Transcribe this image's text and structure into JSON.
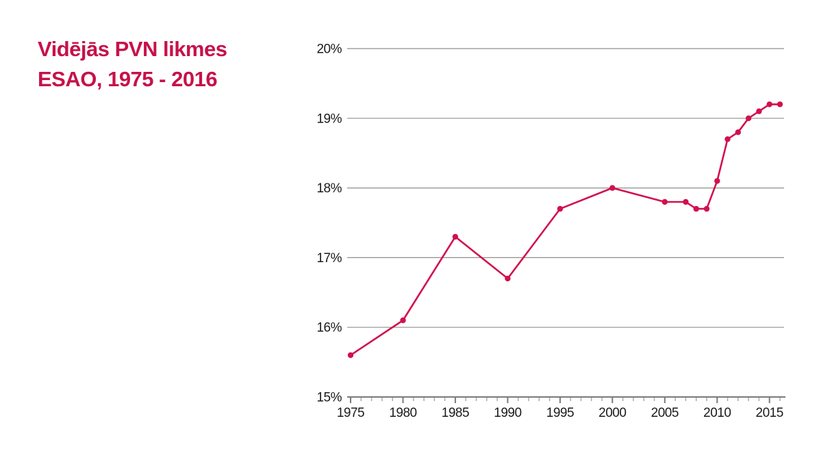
{
  "title": {
    "line1": "Vidējās PVN likmes",
    "line2": "ESAO, 1975 - 2016"
  },
  "colors": {
    "title": "#c7114a",
    "line": "#d2104e",
    "gridline": "#8f8f8f",
    "axis": "#7a7a7a",
    "minor_tick": "#ababab",
    "tick_label": "#1a1a1a"
  },
  "chart_data": {
    "type": "line",
    "title": "Vidējās PVN likmes ESAO, 1975 - 2016",
    "x": [
      1975,
      1980,
      1985,
      1990,
      1995,
      2000,
      2005,
      2007,
      2008,
      2009,
      2010,
      2011,
      2012,
      2013,
      2014,
      2015,
      2016
    ],
    "y": [
      15.6,
      16.1,
      17.3,
      16.7,
      17.7,
      18.0,
      17.8,
      17.8,
      17.7,
      17.7,
      18.1,
      18.7,
      18.8,
      19.0,
      19.1,
      19.2,
      19.2
    ],
    "xlabel": "",
    "ylabel": "",
    "xlim": [
      1975,
      2016
    ],
    "ylim": [
      15,
      20
    ],
    "y_tick_labels": [
      "15%",
      "16%",
      "17%",
      "18%",
      "19%",
      "20%"
    ],
    "x_tick_labels": [
      "1975",
      "1980",
      "1985",
      "1990",
      "1995",
      "2000",
      "2005",
      "2010",
      "2015"
    ],
    "x_minor_tick_every_years": 1,
    "x_major_tick_every_years": 5,
    "grid": "horizontal gridlines at every 1%",
    "legend_position": "none",
    "marker": "filled-circle"
  }
}
